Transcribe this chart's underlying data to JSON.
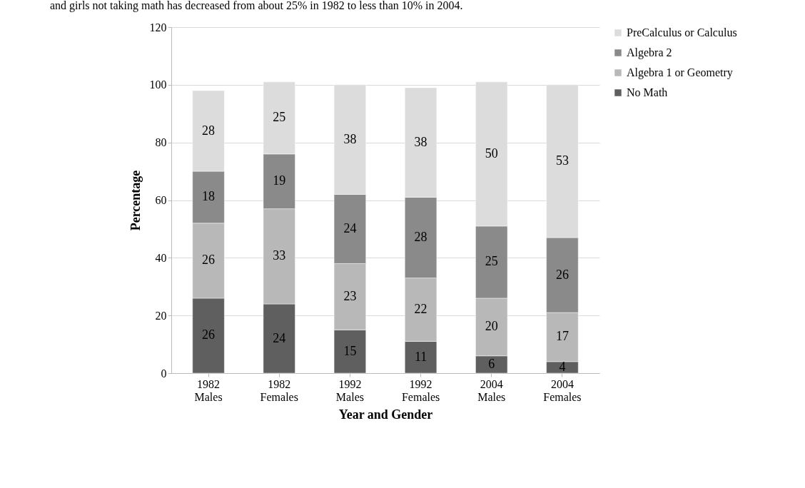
{
  "chart_data": {
    "type": "bar",
    "stacked": true,
    "annotations": [
      "and girls not taking math has decreased from about 25% in 1982 to less than 10% in 2004."
    ],
    "xlabel": "Year and Gender",
    "ylabel": "Percentage",
    "categories": [
      "1982 Males",
      "1982 Females",
      "1992 Males",
      "1992 Females",
      "2004 Males",
      "2004 Females"
    ],
    "series": [
      {
        "name": "No Math",
        "color": "#5f5f5f",
        "values": [
          26,
          24,
          15,
          11,
          6,
          4
        ]
      },
      {
        "name": "Algebra 1 or Geometry",
        "color": "#b8b8b8",
        "values": [
          26,
          33,
          23,
          22,
          20,
          17
        ]
      },
      {
        "name": "Algebra 2",
        "color": "#8a8a8a",
        "values": [
          18,
          19,
          24,
          28,
          25,
          26
        ]
      },
      {
        "name": "PreCalculus or Calculus",
        "color": "#dcdcdc",
        "values": [
          28,
          25,
          38,
          38,
          50,
          53
        ]
      }
    ],
    "ylim": [
      0,
      120
    ],
    "yticks": [
      0,
      20,
      40,
      60,
      80,
      100,
      120
    ],
    "grid": "y",
    "legend": "right",
    "data_labels": true
  }
}
